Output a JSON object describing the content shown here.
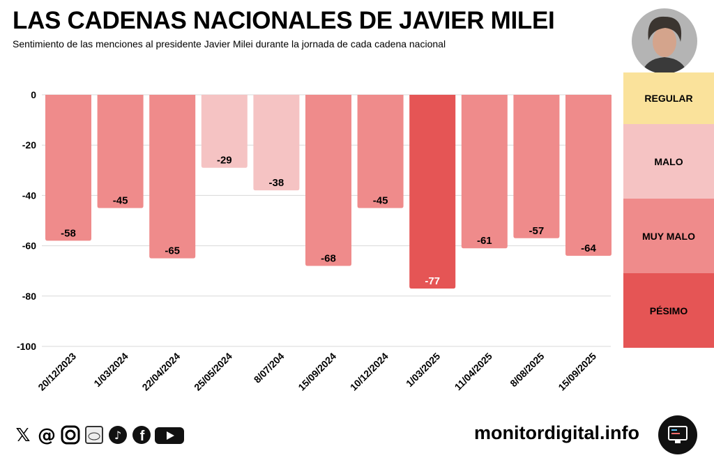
{
  "header": {
    "title": "LAS CADENAS NACIONALES DE JAVIER MILEI",
    "subtitle": "Sentimiento de las menciones al presidente Javier Milei durante la jornada de cada cadena nacional"
  },
  "legend": [
    {
      "label": "REGULAR",
      "color": "#fae29b"
    },
    {
      "label": "MALO",
      "color": "#f5c3c3"
    },
    {
      "label": "MUY MALO",
      "color": "#ef8b8b"
    },
    {
      "label": "PÉSIMO",
      "color": "#e55555"
    }
  ],
  "footer": {
    "brand": "monitordigital.info",
    "social_icons": [
      "x-icon",
      "threads-icon",
      "instagram-icon",
      "reddit-icon",
      "tiktok-icon",
      "facebook-icon",
      "youtube-icon"
    ]
  },
  "chart_data": {
    "type": "bar",
    "title": "LAS CADENAS NACIONALES DE JAVIER MILEI",
    "categories": [
      "20/12/2023",
      "1/03/2024",
      "22/04/2024",
      "25/05/2024",
      "8/07/204",
      "15/09/2024",
      "10/12/2024",
      "1/03/2025",
      "11/04/2025",
      "8/08/2025",
      "15/09/2025"
    ],
    "values": [
      -58,
      -45,
      -65,
      -29,
      -38,
      -68,
      -45,
      -77,
      -61,
      -57,
      -64
    ],
    "categories_color": [
      "MUY MALO",
      "MUY MALO",
      "MUY MALO",
      "MALO",
      "MALO",
      "MUY MALO",
      "MUY MALO",
      "PÉSIMO",
      "MUY MALO",
      "MUY MALO",
      "MUY MALO"
    ],
    "yticks": [
      0,
      -20,
      -40,
      -60,
      -80,
      -100
    ],
    "ylim": [
      -100,
      0
    ],
    "grid": true,
    "xlabel": "",
    "ylabel": ""
  }
}
